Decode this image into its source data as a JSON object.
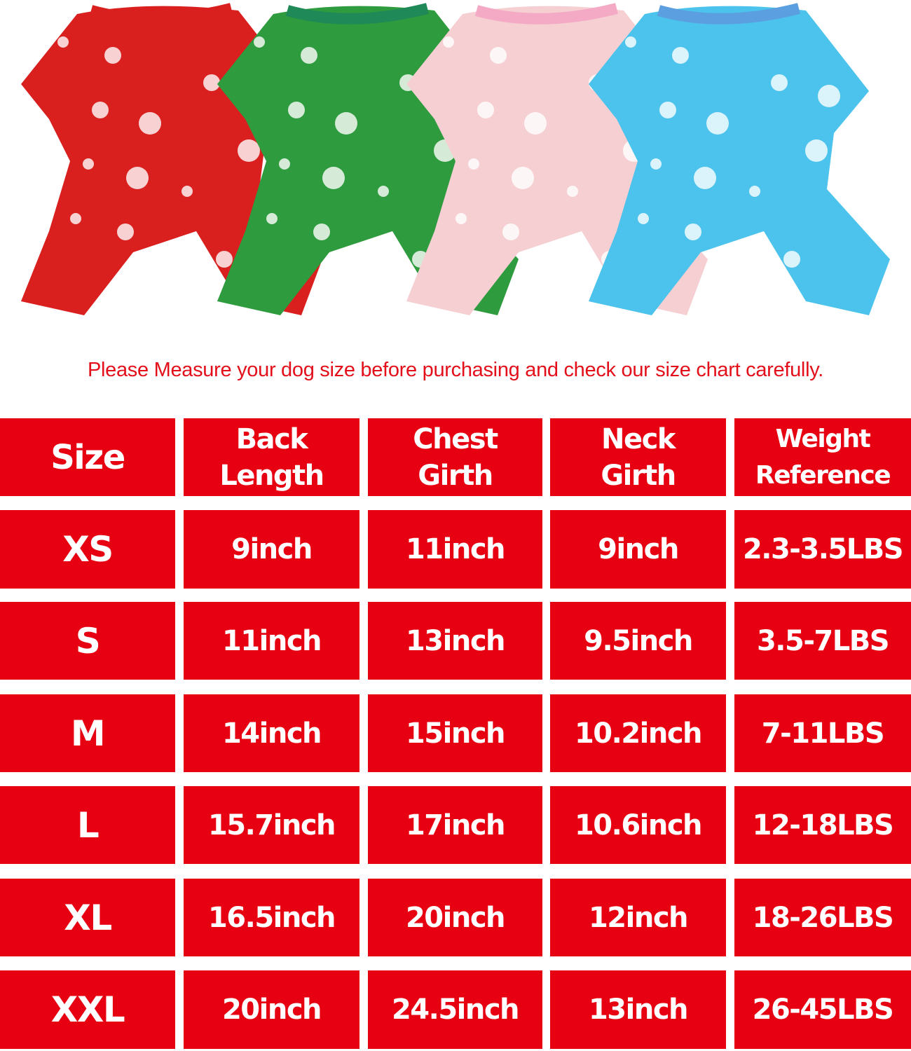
{
  "colors": {
    "accent": "#e60012",
    "notice": "#e3101b"
  },
  "products": [
    {
      "name": "red-fair-isle-pajama",
      "color": "#d9201f",
      "trim": "#d9201f"
    },
    {
      "name": "green-ho-ho-pajama",
      "color": "#2e9b3e",
      "trim": "#1f8a57"
    },
    {
      "name": "pink-snowman-pajama",
      "color": "#f6cfd3",
      "trim": "#f4a9c4"
    },
    {
      "name": "blue-santa-pajama",
      "color": "#4cc3ec",
      "trim": "#5b9fe0"
    }
  ],
  "notice": "Please Measure your dog size before purchasing and check our size chart carefully.",
  "table": {
    "headers": [
      "Size",
      "Back\nLength",
      "Chest\nGirth",
      "Neck\nGirth",
      "Weight\nReference"
    ],
    "rows": [
      [
        "XS",
        "9inch",
        "11inch",
        "9inch",
        "2.3-3.5LBS"
      ],
      [
        "S",
        "11inch",
        "13inch",
        "9.5inch",
        "3.5-7LBS"
      ],
      [
        "M",
        "14inch",
        "15inch",
        "10.2inch",
        "7-11LBS"
      ],
      [
        "L",
        "15.7inch",
        "17inch",
        "10.6inch",
        "12-18LBS"
      ],
      [
        "XL",
        "16.5inch",
        "20inch",
        "12inch",
        "18-26LBS"
      ],
      [
        "XXL",
        "20inch",
        "24.5inch",
        "13inch",
        "26-45LBS"
      ]
    ]
  }
}
